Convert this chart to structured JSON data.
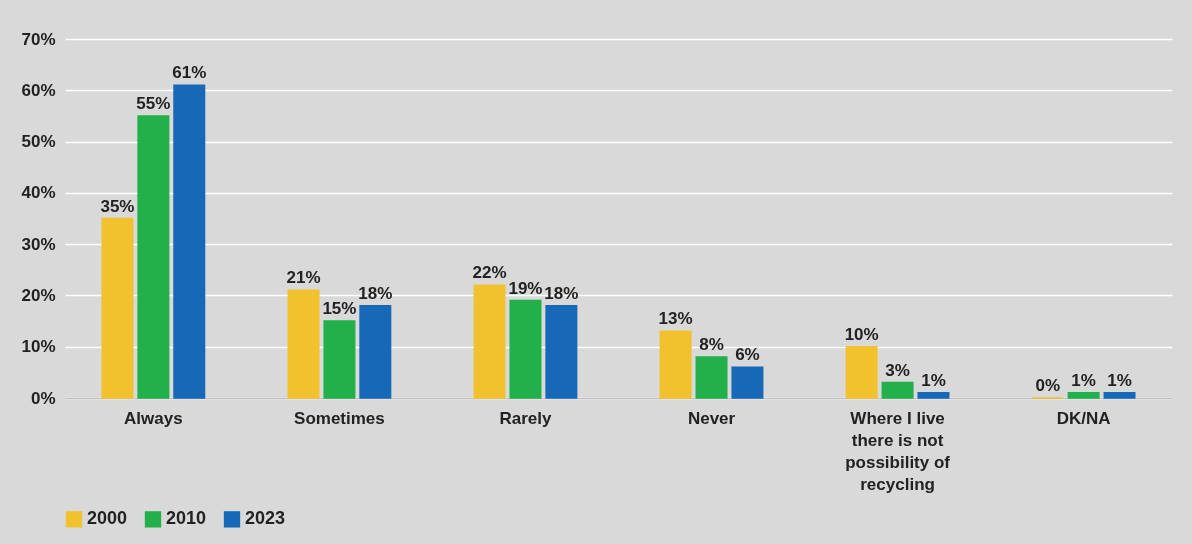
{
  "chart_data": {
    "type": "bar",
    "categories": [
      "Always",
      "Sometimes",
      "Rarely",
      "Never",
      "Where I live there is not possibility of recycling",
      "DK/NA"
    ],
    "series": [
      {
        "name": "2000",
        "color": "#f2c12e",
        "values": [
          35,
          21,
          22,
          13,
          10,
          0
        ],
        "value_labels": [
          "35%",
          "21%",
          "22%",
          "13%",
          "10%",
          "0%"
        ]
      },
      {
        "name": "2010",
        "color": "#22b04b",
        "values": [
          55,
          15,
          19,
          8,
          3,
          1
        ],
        "value_labels": [
          "55%",
          "15%",
          "19%",
          "8%",
          "3%",
          "1%"
        ]
      },
      {
        "name": "2023",
        "color": "#1769b8",
        "values": [
          61,
          18,
          18,
          6,
          1,
          1
        ],
        "value_labels": [
          "61%",
          "18%",
          "18%",
          "6%",
          "1%",
          "1%"
        ]
      }
    ],
    "ylim": [
      0,
      70
    ],
    "yticks": [
      {
        "value": 0,
        "label": "0%"
      },
      {
        "value": 10,
        "label": "10%"
      },
      {
        "value": 20,
        "label": "20%"
      },
      {
        "value": 30,
        "label": "30%"
      },
      {
        "value": 40,
        "label": "40%"
      },
      {
        "value": 50,
        "label": "50%"
      },
      {
        "value": 60,
        "label": "60%"
      },
      {
        "value": 70,
        "label": "70%"
      }
    ],
    "grid": "y",
    "legend": "bottom"
  }
}
